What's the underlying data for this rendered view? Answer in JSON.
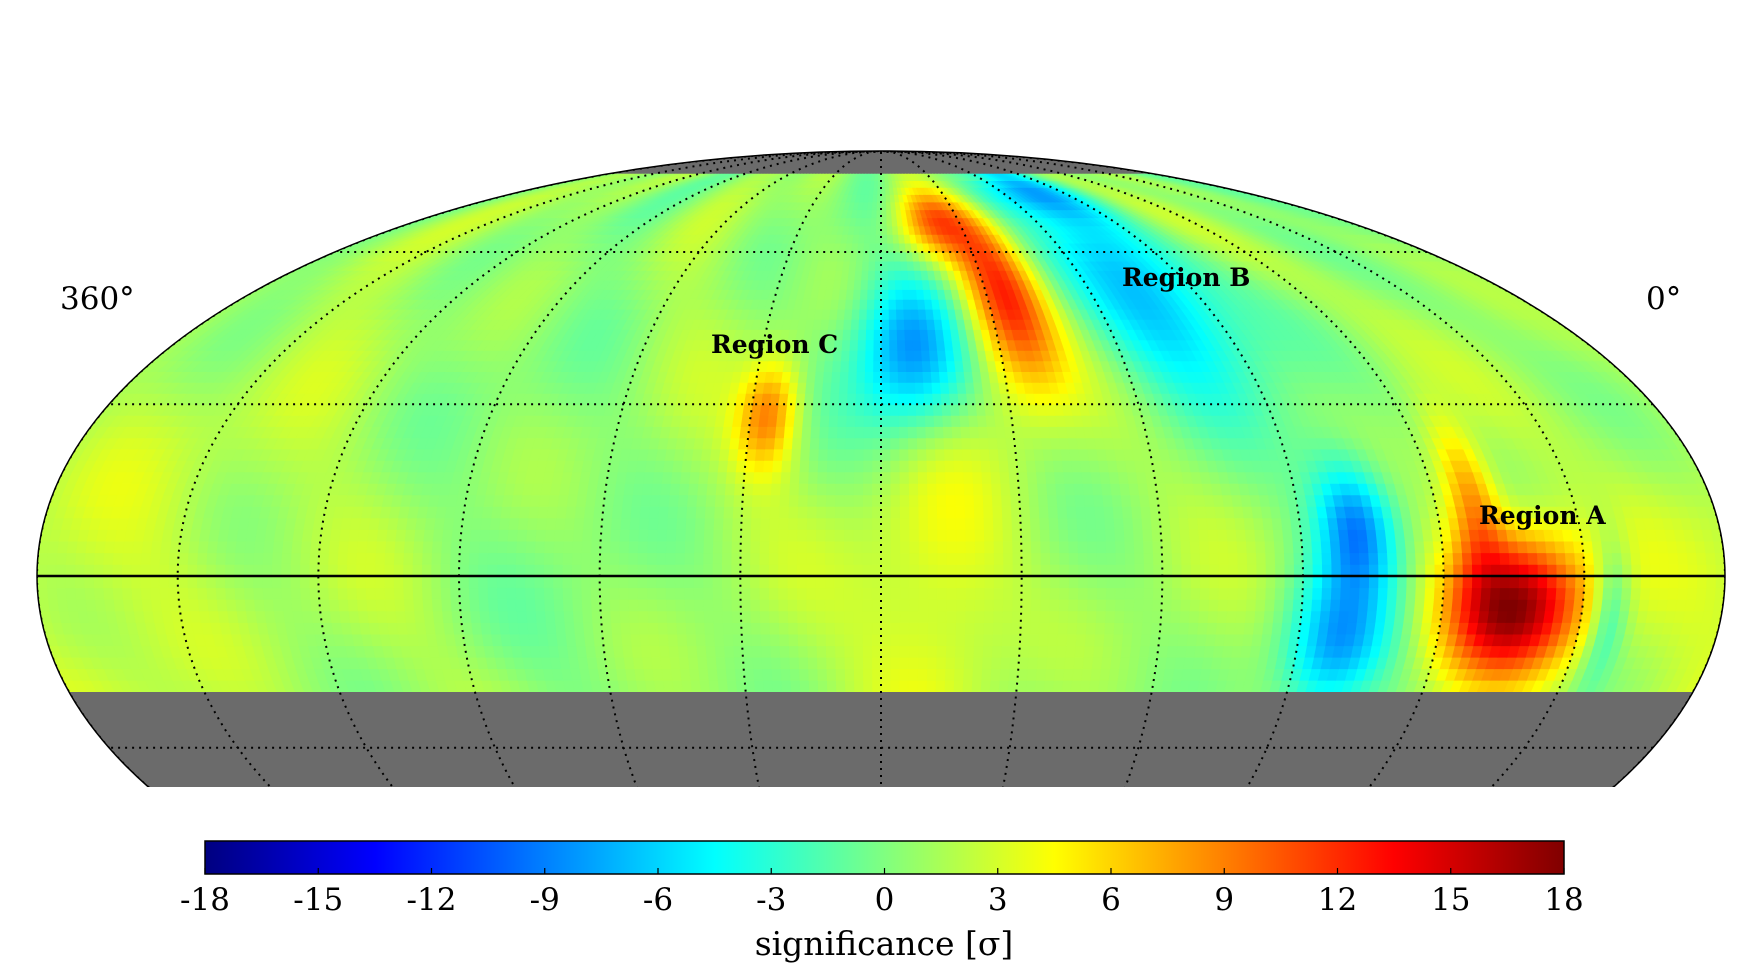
{
  "chart_data": {
    "type": "heatmap",
    "projection": "Mollweide (equatorial sky map)",
    "ra_labels": {
      "left": "360°",
      "right": "0°"
    },
    "coverage_dec_range": [
      -20,
      80
    ],
    "masked_color": "#6b6b6b",
    "grid": true,
    "colormap": "jet",
    "colorbar": {
      "title": "significance [σ]",
      "range": [
        -18,
        18
      ],
      "ticks": [
        -18,
        -15,
        -12,
        -9,
        -6,
        -3,
        0,
        3,
        6,
        9,
        12,
        15,
        18
      ],
      "tick_labels": [
        "-18",
        "-15",
        "-12",
        "-9",
        "-6",
        "-3",
        "0",
        "3",
        "6",
        "9",
        "12",
        "15",
        "18"
      ]
    },
    "regions": [
      {
        "name": "Region A",
        "ra": 45,
        "dec": -5,
        "peak_sigma": 16.5
      },
      {
        "name": "Region B",
        "ra": 143,
        "dec": 50,
        "peak_sigma": 11
      },
      {
        "name": "Region C",
        "ra": 206,
        "dec": 28,
        "peak_sigma": 8
      }
    ],
    "blobs": [
      {
        "ra": 45,
        "dec": -5,
        "sigma_value": 16.5,
        "w_ra": 11,
        "w_dec": 9
      },
      {
        "ra": 52,
        "dec": 14,
        "sigma_value": 7,
        "w_ra": 4,
        "w_dec": 9
      },
      {
        "ra": 145,
        "dec": 50,
        "sigma_value": 11,
        "w_ra": 8,
        "w_dec": 12
      },
      {
        "ra": 160,
        "dec": 67,
        "sigma_value": 8,
        "w_ra": 10,
        "w_dec": 6
      },
      {
        "ra": 206,
        "dec": 28,
        "sigma_value": 8,
        "w_ra": 5,
        "w_dec": 7
      },
      {
        "ra": 167,
        "dec": 0,
        "sigma_value": 4,
        "w_ra": 12,
        "w_dec": 22
      },
      {
        "ra": 345,
        "dec": 0,
        "sigma_value": 2.5,
        "w_ra": 20,
        "w_dec": 30
      },
      {
        "ra": 78,
        "dec": 9,
        "sigma_value": -9,
        "w_ra": 6,
        "w_dec": 8
      },
      {
        "ra": 82,
        "dec": -12,
        "sigma_value": -8,
        "w_ra": 8,
        "w_dec": 9
      },
      {
        "ra": 24,
        "dec": -6,
        "sigma_value": -5,
        "w_ra": 3,
        "w_dec": 9
      },
      {
        "ra": 173,
        "dec": 40,
        "sigma_value": -9,
        "w_ra": 10,
        "w_dec": 11
      },
      {
        "ra": 105,
        "dec": 52,
        "sigma_value": -8,
        "w_ra": 14,
        "w_dec": 14
      },
      {
        "ra": 112,
        "dec": 75,
        "sigma_value": -6,
        "w_ra": 18,
        "w_dec": 5
      }
    ]
  }
}
